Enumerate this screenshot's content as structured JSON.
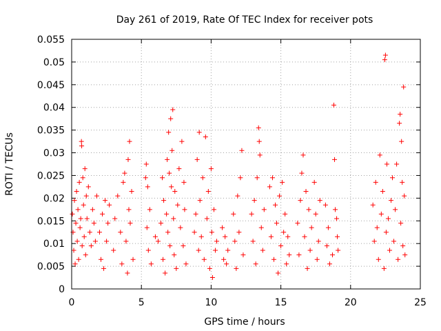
{
  "chart_data": {
    "type": "scatter",
    "title": "Day 261 of 2019, Rate Of TEC Index for receiver pots",
    "xlabel": "GPS time / hours",
    "ylabel": "ROTI / TECUs",
    "xlim": [
      0,
      25
    ],
    "ylim": [
      0,
      0.055
    ],
    "xticks": [
      0,
      5,
      10,
      15,
      20,
      25
    ],
    "xtick_labels": [
      "0",
      "5",
      "10",
      "15",
      "20",
      "25"
    ],
    "yticks": [
      0,
      0.005,
      0.01,
      0.015,
      0.02,
      0.025,
      0.03,
      0.035,
      0.04,
      0.045,
      0.05,
      0.055
    ],
    "ytick_labels": [
      "0",
      "0.005",
      "0.01",
      "0.015",
      "0.02",
      "0.025",
      "0.03",
      "0.035",
      "0.04",
      "0.045",
      "0.05",
      "0.055"
    ],
    "grid": true,
    "marker": "+",
    "marker_color": "#ff0000",
    "series": [
      {
        "points": [
          [
            0.05,
            0.0165
          ],
          [
            0.1,
            0.0125
          ],
          [
            0.15,
            0.0085
          ],
          [
            0.2,
            0.0195
          ],
          [
            0.25,
            0.0055
          ],
          [
            0.3,
            0.0145
          ],
          [
            0.35,
            0.0215
          ],
          [
            0.4,
            0.0105
          ],
          [
            0.45,
            0.0175
          ],
          [
            0.5,
            0.0065
          ],
          [
            0.55,
            0.0235
          ],
          [
            0.6,
            0.0135
          ],
          [
            0.65,
            0.0155
          ],
          [
            0.7,
            0.0325
          ],
          [
            0.72,
            0.0315
          ],
          [
            0.75,
            0.0095
          ],
          [
            0.8,
            0.0245
          ],
          [
            0.85,
            0.0185
          ],
          [
            0.9,
            0.0115
          ],
          [
            0.95,
            0.0265
          ],
          [
            1.0,
            0.0075
          ],
          [
            1.05,
            0.0205
          ],
          [
            1.1,
            0.0155
          ],
          [
            1.2,
            0.0225
          ],
          [
            1.3,
            0.0125
          ],
          [
            1.4,
            0.0095
          ],
          [
            1.5,
            0.0175
          ],
          [
            1.6,
            0.0145
          ],
          [
            1.7,
            0.0105
          ],
          [
            1.8,
            0.0205
          ],
          [
            2.0,
            0.0125
          ],
          [
            2.1,
            0.0065
          ],
          [
            2.2,
            0.0165
          ],
          [
            2.3,
            0.0045
          ],
          [
            2.4,
            0.0195
          ],
          [
            2.5,
            0.0105
          ],
          [
            2.6,
            0.0145
          ],
          [
            2.7,
            0.0185
          ],
          [
            3.0,
            0.0085
          ],
          [
            3.1,
            0.0155
          ],
          [
            3.3,
            0.0205
          ],
          [
            3.5,
            0.0125
          ],
          [
            3.6,
            0.0055
          ],
          [
            3.7,
            0.0235
          ],
          [
            3.8,
            0.0255
          ],
          [
            3.9,
            0.0105
          ],
          [
            4.0,
            0.0035
          ],
          [
            4.05,
            0.0285
          ],
          [
            4.1,
            0.0175
          ],
          [
            4.15,
            0.0325
          ],
          [
            4.2,
            0.0145
          ],
          [
            4.3,
            0.0215
          ],
          [
            4.4,
            0.0065
          ],
          [
            5.3,
            0.0245
          ],
          [
            5.35,
            0.0275
          ],
          [
            5.4,
            0.0135
          ],
          [
            5.45,
            0.0225
          ],
          [
            5.5,
            0.0085
          ],
          [
            5.6,
            0.0175
          ],
          [
            5.7,
            0.0055
          ],
          [
            6.0,
            0.0115
          ],
          [
            6.2,
            0.0105
          ],
          [
            6.4,
            0.0145
          ],
          [
            6.5,
            0.0245
          ],
          [
            6.55,
            0.0065
          ],
          [
            6.6,
            0.0195
          ],
          [
            6.7,
            0.0035
          ],
          [
            6.8,
            0.0165
          ],
          [
            6.85,
            0.0285
          ],
          [
            6.9,
            0.0125
          ],
          [
            6.95,
            0.0345
          ],
          [
            7.0,
            0.0255
          ],
          [
            7.05,
            0.0095
          ],
          [
            7.1,
            0.0375
          ],
          [
            7.15,
            0.0225
          ],
          [
            7.2,
            0.0305
          ],
          [
            7.25,
            0.0395
          ],
          [
            7.3,
            0.0155
          ],
          [
            7.35,
            0.0075
          ],
          [
            7.4,
            0.0215
          ],
          [
            7.5,
            0.0045
          ],
          [
            7.6,
            0.0185
          ],
          [
            7.7,
            0.0265
          ],
          [
            7.8,
            0.0135
          ],
          [
            7.9,
            0.0325
          ],
          [
            8.0,
            0.0095
          ],
          [
            8.05,
            0.0235
          ],
          [
            8.1,
            0.0175
          ],
          [
            8.2,
            0.0055
          ],
          [
            8.8,
            0.0125
          ],
          [
            8.9,
            0.0165
          ],
          [
            9.0,
            0.0285
          ],
          [
            9.1,
            0.0085
          ],
          [
            9.15,
            0.0345
          ],
          [
            9.2,
            0.0195
          ],
          [
            9.3,
            0.0115
          ],
          [
            9.4,
            0.0245
          ],
          [
            9.5,
            0.0065
          ],
          [
            9.6,
            0.0335
          ],
          [
            9.7,
            0.0155
          ],
          [
            9.8,
            0.0215
          ],
          [
            9.9,
            0.0045
          ],
          [
            10.0,
            0.0265
          ],
          [
            10.05,
            0.0125
          ],
          [
            10.1,
            0.0025
          ],
          [
            10.2,
            0.0175
          ],
          [
            10.3,
            0.0085
          ],
          [
            10.4,
            0.0105
          ],
          [
            10.8,
            0.0135
          ],
          [
            10.9,
            0.0065
          ],
          [
            11.0,
            0.0115
          ],
          [
            11.1,
            0.0055
          ],
          [
            11.2,
            0.0085
          ],
          [
            11.6,
            0.0165
          ],
          [
            11.7,
            0.0105
          ],
          [
            11.8,
            0.0045
          ],
          [
            11.9,
            0.0205
          ],
          [
            12.0,
            0.0125
          ],
          [
            12.1,
            0.0245
          ],
          [
            12.2,
            0.0305
          ],
          [
            12.3,
            0.0075
          ],
          [
            12.9,
            0.0165
          ],
          [
            13.0,
            0.0105
          ],
          [
            13.1,
            0.0195
          ],
          [
            13.2,
            0.0055
          ],
          [
            13.3,
            0.0245
          ],
          [
            13.4,
            0.0355
          ],
          [
            13.45,
            0.0325
          ],
          [
            13.5,
            0.0295
          ],
          [
            13.6,
            0.0135
          ],
          [
            13.7,
            0.0085
          ],
          [
            13.8,
            0.0175
          ],
          [
            14.2,
            0.0225
          ],
          [
            14.3,
            0.0115
          ],
          [
            14.4,
            0.0245
          ],
          [
            14.5,
            0.0065
          ],
          [
            14.6,
            0.0185
          ],
          [
            14.7,
            0.0145
          ],
          [
            14.8,
            0.0035
          ],
          [
            14.9,
            0.0205
          ],
          [
            15.0,
            0.0095
          ],
          [
            15.1,
            0.0235
          ],
          [
            15.2,
            0.0125
          ],
          [
            15.3,
            0.0165
          ],
          [
            15.4,
            0.0055
          ],
          [
            15.5,
            0.0115
          ],
          [
            15.6,
            0.0075
          ],
          [
            16.2,
            0.0145
          ],
          [
            16.3,
            0.0075
          ],
          [
            16.4,
            0.0195
          ],
          [
            16.5,
            0.0255
          ],
          [
            16.6,
            0.0295
          ],
          [
            16.7,
            0.0115
          ],
          [
            16.8,
            0.0215
          ],
          [
            16.9,
            0.0045
          ],
          [
            17.0,
            0.0175
          ],
          [
            17.1,
            0.0085
          ],
          [
            17.2,
            0.0135
          ],
          [
            17.4,
            0.0235
          ],
          [
            17.5,
            0.0165
          ],
          [
            17.6,
            0.0065
          ],
          [
            17.7,
            0.0105
          ],
          [
            17.8,
            0.0195
          ],
          [
            18.2,
            0.0185
          ],
          [
            18.3,
            0.0095
          ],
          [
            18.4,
            0.0135
          ],
          [
            18.5,
            0.0055
          ],
          [
            18.7,
            0.0075
          ],
          [
            18.8,
            0.0405
          ],
          [
            18.85,
            0.0285
          ],
          [
            18.9,
            0.0175
          ],
          [
            19.0,
            0.0155
          ],
          [
            19.05,
            0.0115
          ],
          [
            19.1,
            0.0085
          ],
          [
            21.6,
            0.0185
          ],
          [
            21.7,
            0.0105
          ],
          [
            21.8,
            0.0235
          ],
          [
            21.9,
            0.0135
          ],
          [
            22.0,
            0.0065
          ],
          [
            22.1,
            0.0295
          ],
          [
            22.2,
            0.0165
          ],
          [
            22.3,
            0.0215
          ],
          [
            22.4,
            0.0045
          ],
          [
            22.45,
            0.0505
          ],
          [
            22.5,
            0.0515
          ],
          [
            22.55,
            0.0125
          ],
          [
            22.6,
            0.0275
          ],
          [
            22.7,
            0.0155
          ],
          [
            22.8,
            0.0085
          ],
          [
            22.9,
            0.0195
          ],
          [
            23.0,
            0.0245
          ],
          [
            23.1,
            0.0105
          ],
          [
            23.2,
            0.0175
          ],
          [
            23.3,
            0.0275
          ],
          [
            23.4,
            0.0065
          ],
          [
            23.5,
            0.0365
          ],
          [
            23.55,
            0.0385
          ],
          [
            23.6,
            0.0145
          ],
          [
            23.65,
            0.0325
          ],
          [
            23.7,
            0.0235
          ],
          [
            23.75,
            0.0095
          ],
          [
            23.8,
            0.0445
          ],
          [
            23.85,
            0.0205
          ],
          [
            23.9,
            0.0075
          ]
        ]
      }
    ]
  }
}
